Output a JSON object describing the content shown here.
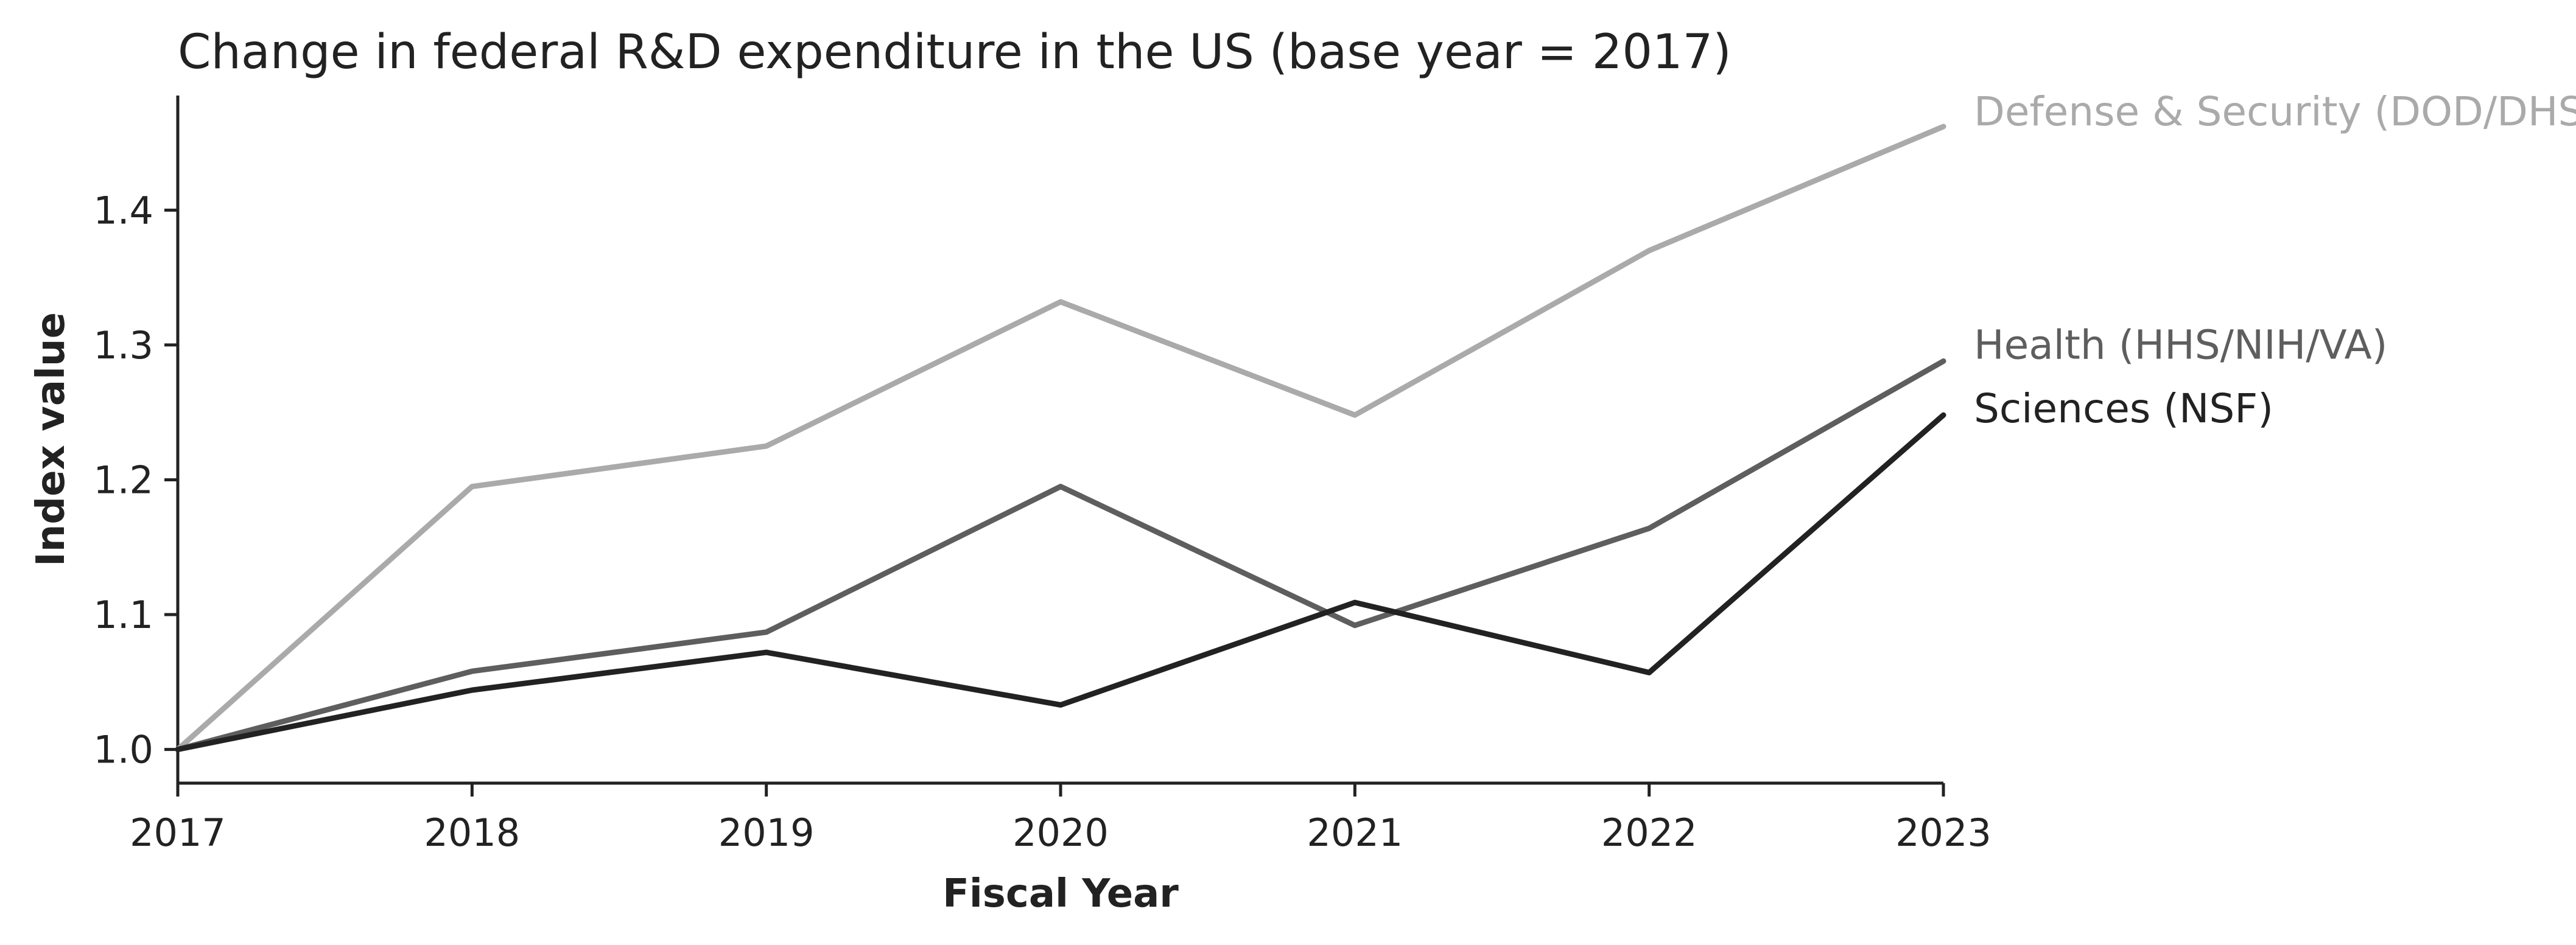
{
  "chart_data": {
    "type": "line",
    "title": "Change in federal R&D expenditure in the US (base year = 2017)",
    "xlabel": "Fiscal Year",
    "ylabel": "Index value",
    "x": [
      2017,
      2018,
      2019,
      2020,
      2021,
      2022,
      2023
    ],
    "x_tick_labels": [
      "2017",
      "2018",
      "2019",
      "2020",
      "2021",
      "2022",
      "2023"
    ],
    "xlim": [
      2017,
      2023
    ],
    "y_ticks": [
      1.0,
      1.1,
      1.2,
      1.3,
      1.4
    ],
    "y_tick_labels": [
      "1.0",
      "1.1",
      "1.2",
      "1.3",
      "1.4"
    ],
    "ylim": [
      0.975,
      1.485
    ],
    "grid": false,
    "legend": "direct labels at right end of lines",
    "series": [
      {
        "name": "Defense & Security (DOD/DHS)",
        "color": "#aaaaaa",
        "values": [
          1.0,
          1.195,
          1.225,
          1.332,
          1.248,
          1.37,
          1.462
        ]
      },
      {
        "name": "Health (HHS/NIH/VA)",
        "color": "#5e5e5e",
        "values": [
          1.0,
          1.058,
          1.087,
          1.195,
          1.092,
          1.164,
          1.288
        ]
      },
      {
        "name": "Sciences (NSF)",
        "color": "#222222",
        "values": [
          1.0,
          1.044,
          1.072,
          1.033,
          1.109,
          1.057,
          1.248
        ]
      }
    ]
  }
}
